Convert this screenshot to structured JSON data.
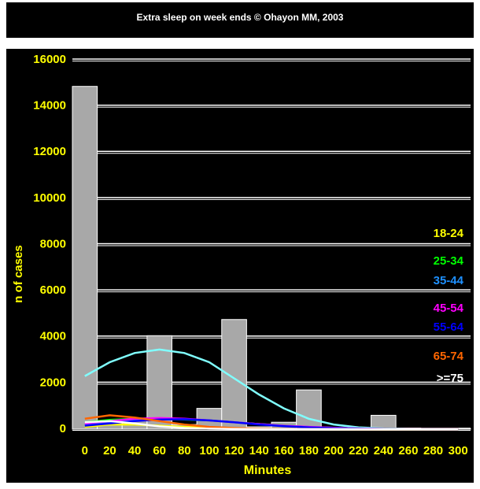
{
  "chart_data": {
    "type": "bar",
    "title": "Extra sleep on week ends © Ohayon MM, 2003",
    "x_label": "Minutes",
    "y_label": "n of cases",
    "x": [
      0,
      20,
      40,
      60,
      80,
      100,
      120,
      140,
      160,
      180,
      200,
      220,
      240,
      260,
      280,
      300
    ],
    "values": [
      14850,
      300,
      400,
      4050,
      200,
      900,
      4750,
      100,
      300,
      1700,
      50,
      50,
      600,
      50,
      20,
      20
    ],
    "color": "#a8a8a8",
    "series": [
      {
        "color": "#80ffff",
        "values": [
          2300,
          2900,
          3300,
          3450,
          3300,
          2900,
          2200,
          1500,
          900,
          450,
          200,
          80,
          30,
          10,
          5,
          2
        ]
      },
      {
        "name": "18-24",
        "color": "#ffff00",
        "values": [
          100,
          200,
          200,
          150,
          100,
          60,
          30,
          15,
          8,
          4,
          2,
          1,
          0,
          0,
          0,
          0
        ]
      },
      {
        "name": "25-34",
        "color": "#00ff00",
        "values": [
          300,
          400,
          450,
          450,
          420,
          380,
          300,
          220,
          160,
          100,
          60,
          30,
          15,
          5,
          2,
          1
        ]
      },
      {
        "name": "35-44",
        "color": "#1e90ff",
        "values": [
          200,
          300,
          400,
          450,
          430,
          380,
          300,
          220,
          150,
          100,
          60,
          30,
          15,
          8,
          4,
          2
        ]
      },
      {
        "name": "45-54",
        "color": "#ff00ff",
        "values": [
          250,
          350,
          450,
          480,
          450,
          380,
          300,
          220,
          150,
          100,
          60,
          30,
          15,
          8,
          4,
          2
        ]
      },
      {
        "name": "55-64",
        "color": "#0000ff",
        "values": [
          150,
          250,
          350,
          420,
          430,
          380,
          300,
          200,
          130,
          80,
          40,
          20,
          10,
          5,
          2,
          1
        ]
      },
      {
        "name": "65-74",
        "color": "#ff6600",
        "values": [
          450,
          600,
          500,
          350,
          200,
          100,
          50,
          20,
          10,
          5,
          2,
          1,
          0,
          0,
          0,
          0
        ]
      },
      {
        "name": ">=75",
        "color": "#ffffff",
        "values": [
          300,
          350,
          250,
          120,
          50,
          20,
          8,
          3,
          1,
          0,
          0,
          0,
          0,
          0,
          0,
          0
        ]
      }
    ],
    "xlim": [
      -10,
      310
    ],
    "xticks": [
      0,
      20,
      40,
      60,
      80,
      100,
      120,
      140,
      160,
      180,
      200,
      220,
      240,
      260,
      280,
      300
    ],
    "ylim": [
      0,
      16000
    ],
    "yticks": [
      0,
      2000,
      4000,
      6000,
      8000,
      10000,
      12000,
      14000,
      16000
    ],
    "grid": true
  }
}
